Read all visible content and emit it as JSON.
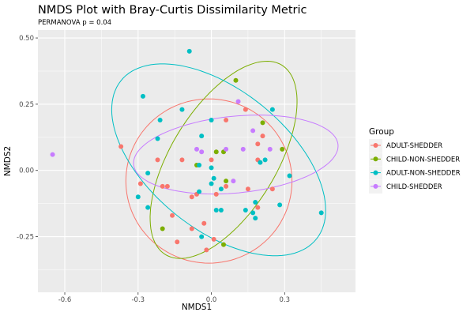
{
  "chart_data": {
    "type": "scatter",
    "title": "NMDS Plot with Bray-Curtis Dissimilarity Metric",
    "subtitle": "PERMANOVA p = 0.04",
    "xlabel": "NMDS1",
    "ylabel": "NMDS2",
    "xlim": [
      -0.71,
      0.59
    ],
    "ylim": [
      -0.46,
      0.53
    ],
    "x_ticks": [
      -0.6,
      -0.3,
      0.0,
      0.3
    ],
    "x_tick_labels": [
      "-0.6",
      "-0.3",
      "0.0",
      "0.3"
    ],
    "y_ticks": [
      0.5,
      0.25,
      0.0,
      -0.25
    ],
    "y_tick_labels": [
      "0.50",
      "0.25",
      "0.00",
      "-0.25"
    ],
    "grid": true,
    "legend": {
      "title": "Group",
      "position": "right"
    },
    "series": [
      {
        "name": "ADULT-SHEDDER",
        "color": "#F8766D",
        "points": [
          [
            -0.37,
            0.09
          ],
          [
            -0.29,
            -0.05
          ],
          [
            -0.22,
            0.04
          ],
          [
            -0.2,
            -0.06
          ],
          [
            -0.18,
            -0.06
          ],
          [
            -0.16,
            -0.17
          ],
          [
            -0.14,
            -0.27
          ],
          [
            -0.12,
            0.04
          ],
          [
            -0.08,
            -0.22
          ],
          [
            -0.06,
            -0.09
          ],
          [
            -0.03,
            -0.2
          ],
          [
            -0.02,
            -0.3
          ],
          [
            0.01,
            -0.26
          ],
          [
            0.0,
            0.04
          ],
          [
            0.06,
            0.19
          ],
          [
            0.14,
            0.23
          ],
          [
            0.21,
            0.13
          ],
          [
            0.19,
            0.1
          ],
          [
            0.02,
            -0.09
          ],
          [
            0.06,
            -0.06
          ],
          [
            -0.08,
            -0.1
          ],
          [
            0.15,
            -0.07
          ],
          [
            0.19,
            0.04
          ],
          [
            0.25,
            -0.07
          ],
          [
            0.19,
            -0.14
          ]
        ]
      },
      {
        "name": "CHILD-NON-SHEDDER",
        "color": "#7CAE00",
        "points": [
          [
            0.1,
            0.34
          ],
          [
            0.21,
            0.18
          ],
          [
            0.29,
            0.08
          ],
          [
            0.02,
            0.07
          ],
          [
            0.05,
            0.07
          ],
          [
            -0.06,
            0.02
          ],
          [
            -0.2,
            -0.22
          ],
          [
            0.05,
            -0.28
          ],
          [
            0.06,
            -0.04
          ]
        ]
      },
      {
        "name": "ADULT-NON-SHEDDER",
        "color": "#00BFC4",
        "points": [
          [
            -0.09,
            0.45
          ],
          [
            -0.28,
            0.28
          ],
          [
            -0.21,
            0.19
          ],
          [
            -0.12,
            0.23
          ],
          [
            -0.22,
            0.12
          ],
          [
            -0.26,
            -0.01
          ],
          [
            -0.3,
            -0.1
          ],
          [
            -0.26,
            -0.14
          ],
          [
            -0.04,
            0.13
          ],
          [
            -0.05,
            0.02
          ],
          [
            0.0,
            0.01
          ],
          [
            0.01,
            -0.03
          ],
          [
            0.0,
            -0.05
          ],
          [
            -0.05,
            -0.08
          ],
          [
            0.04,
            -0.07
          ],
          [
            0.02,
            -0.15
          ],
          [
            0.04,
            -0.15
          ],
          [
            0.14,
            -0.15
          ],
          [
            0.17,
            -0.16
          ],
          [
            0.18,
            -0.18
          ],
          [
            0.18,
            -0.12
          ],
          [
            0.25,
            0.23
          ],
          [
            0.2,
            0.03
          ],
          [
            0.22,
            0.04
          ],
          [
            0.28,
            -0.13
          ],
          [
            0.32,
            -0.02
          ],
          [
            0.45,
            -0.16
          ],
          [
            -0.04,
            -0.25
          ],
          [
            0.0,
            0.19
          ]
        ]
      },
      {
        "name": "CHILD-SHEDDER",
        "color": "#C77CFF",
        "points": [
          [
            -0.65,
            0.06
          ],
          [
            0.11,
            0.26
          ],
          [
            0.17,
            0.15
          ],
          [
            -0.06,
            0.08
          ],
          [
            -0.04,
            0.07
          ],
          [
            0.06,
            0.08
          ],
          [
            0.13,
            0.08
          ],
          [
            0.24,
            0.08
          ],
          [
            0.09,
            -0.04
          ]
        ]
      }
    ],
    "ellipses": [
      {
        "group": "ADULT-SHEDDER",
        "color": "#F8766D",
        "cx": -0.01,
        "cy": -0.04,
        "rx": 0.34,
        "ry": 0.31,
        "angle_deg": 0
      },
      {
        "group": "CHILD-NON-SHEDDER",
        "color": "#7CAE00",
        "cx": 0.05,
        "cy": 0.04,
        "rx": 0.43,
        "ry": 0.21,
        "angle_deg": 55
      },
      {
        "group": "ADULT-NON-SHEDDER",
        "color": "#00BFC4",
        "cx": 0.03,
        "cy": 0.04,
        "rx": 0.5,
        "ry": 0.27,
        "angle_deg": -35
      },
      {
        "group": "CHILD-SHEDDER",
        "color": "#C77CFF",
        "cx": 0.1,
        "cy": 0.06,
        "rx": 0.42,
        "ry": 0.145,
        "angle_deg": 5
      }
    ]
  }
}
